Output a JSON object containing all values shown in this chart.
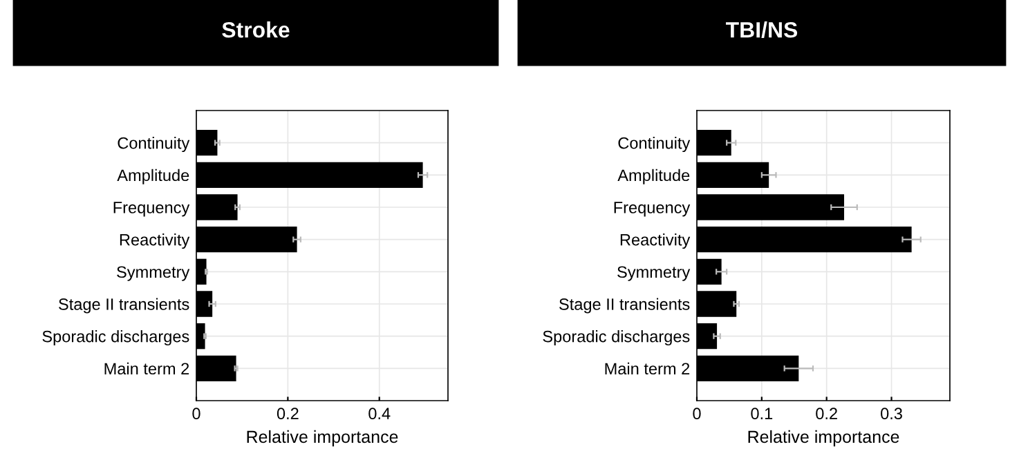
{
  "chart_data": [
    {
      "type": "bar",
      "orientation": "horizontal",
      "title": "Stroke",
      "xlabel": "Relative importance",
      "categories": [
        "Continuity",
        "Amplitude",
        "Frequency",
        "Reactivity",
        "Symmetry",
        "Stage II transients",
        "Sporadic discharges",
        "Main term 2"
      ],
      "values": [
        0.046,
        0.495,
        0.09,
        0.22,
        0.022,
        0.035,
        0.019,
        0.087
      ],
      "errors": [
        0.005,
        0.01,
        0.005,
        0.008,
        0.002,
        0.007,
        0.002,
        0.003
      ],
      "color": "#000000",
      "xlim": [
        0,
        0.55
      ],
      "xticks": [
        0,
        0.2,
        0.4
      ],
      "grid": true
    },
    {
      "type": "bar",
      "orientation": "horizontal",
      "title": "TBI/NS",
      "xlabel": "Relative importance",
      "categories": [
        "Continuity",
        "Amplitude",
        "Frequency",
        "Reactivity",
        "Symmetry",
        "Stage II transients",
        "Sporadic discharges",
        "Main term 2"
      ],
      "values": [
        0.053,
        0.111,
        0.227,
        0.331,
        0.038,
        0.061,
        0.031,
        0.157
      ],
      "errors": [
        0.007,
        0.011,
        0.02,
        0.014,
        0.008,
        0.004,
        0.005,
        0.022
      ],
      "color": "#000000",
      "xlim": [
        0,
        0.39
      ],
      "xticks": [
        0,
        0.1,
        0.2,
        0.3
      ],
      "grid": true
    }
  ]
}
